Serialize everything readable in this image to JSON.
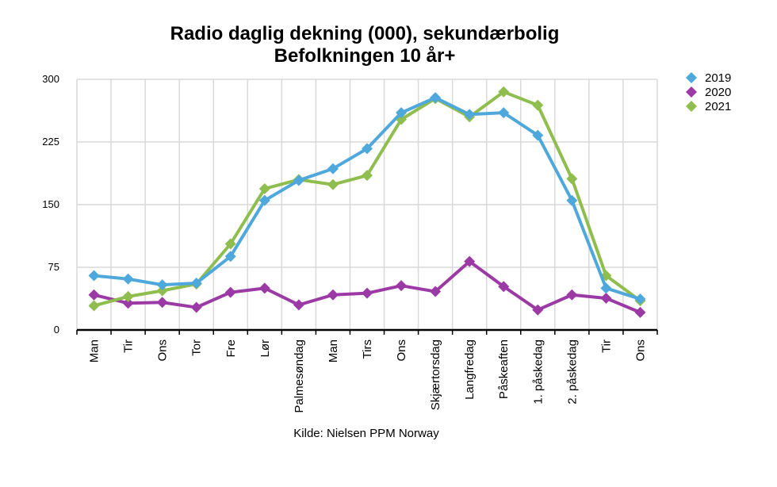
{
  "chart_data": {
    "type": "line",
    "title": "Radio daglig dekning (000), sekundærbolig",
    "subtitle": "Befolkningen 10 år+",
    "source": "Kilde: Nielsen PPM Norway",
    "categories": [
      "Man",
      "Tir",
      "Ons",
      "Tor",
      "Fre",
      "Lør",
      "Palmesøndag",
      "Man",
      "Tirs",
      "Ons",
      "Skjærtorsdag",
      "Langfredag",
      "Påskeaften",
      "1. påskedag",
      "2. påskedag",
      "Tir",
      "Ons"
    ],
    "ylim": [
      0,
      300
    ],
    "yticks": [
      0,
      75,
      150,
      225,
      300
    ],
    "grid": true,
    "legend_position": "right",
    "series": [
      {
        "name": "2019",
        "color": "#4fa8dc",
        "values": [
          65,
          61,
          54,
          56,
          88,
          155,
          179,
          193,
          217,
          260,
          278,
          258,
          260,
          233,
          155,
          50,
          37
        ]
      },
      {
        "name": "2020",
        "color": "#9c3aa5",
        "values": [
          42,
          32,
          33,
          27,
          45,
          50,
          30,
          42,
          44,
          53,
          46,
          82,
          52,
          24,
          42,
          38,
          21
        ]
      },
      {
        "name": "2021",
        "color": "#8fbe4e",
        "values": [
          29,
          40,
          47,
          55,
          103,
          169,
          180,
          174,
          185,
          252,
          277,
          255,
          285,
          269,
          181,
          65,
          35
        ]
      }
    ]
  }
}
